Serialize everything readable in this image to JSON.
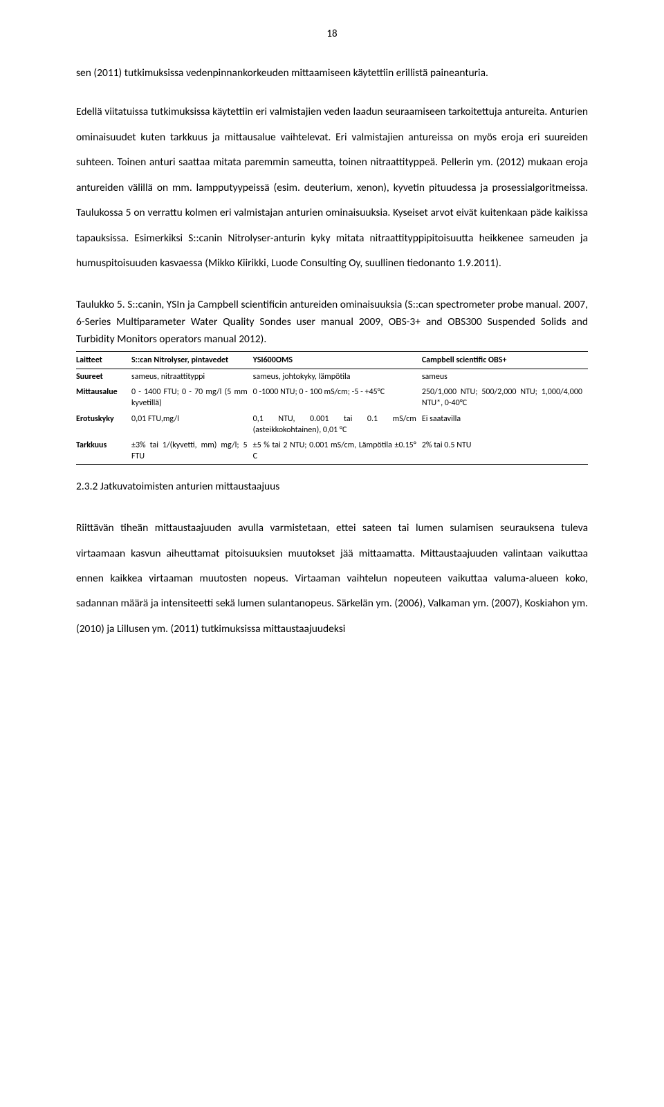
{
  "page_number": "18",
  "paragraphs": {
    "p1": "sen (2011) tutkimuksissa vedenpinnankorkeuden mittaamiseen käytettiin erillistä paineanturia.",
    "p2": "Edellä viitatuissa tutkimuksissa käytettiin eri valmistajien veden laadun seuraamiseen tarkoitettuja antureita. Anturien ominaisuudet kuten tarkkuus ja mittausalue vaihtelevat. Eri valmistajien antureissa on myös eroja eri suureiden suhteen. Toinen anturi saattaa mitata paremmin sameutta, toinen nitraattityppeä. Pellerin ym. (2012) mukaan eroja antureiden välillä on mm. lampputyypeissä (esim. deuterium, xenon), kyvetin pituudessa ja prosessialgoritmeissa. Taulukossa 5 on verrattu kolmen eri valmistajan anturien ominaisuuksia. Kyseiset arvot eivät kuitenkaan päde kaikissa tapauksissa. Esimerkiksi S::canin Nitrolyser-anturin kyky mitata nitraattityppipitoisuutta heikkenee sameuden ja humuspitoisuuden kasvaessa (Mikko Kiirikki, Luode Consulting Oy, suullinen tiedonanto 1.9.2011).",
    "p3": "Riittävän tiheän mittaustaajuuden avulla varmistetaan, ettei sateen tai lumen sulamisen seurauksena tuleva virtaamaan kasvun aiheuttamat pitoisuuksien muutokset jää mittaamatta. Mittaustaajuuden valintaan vaikuttaa ennen kaikkea virtaaman muutosten nopeus. Virtaaman vaihtelun nopeuteen vaikuttaa valuma-alueen koko, sadannan määrä ja intensiteetti sekä lumen sulantanopeus. Särkelän ym. (2006), Valkaman ym. (2007), Koskiahon ym. (2010) ja Lillusen ym. (2011) tutkimuksissa mittaustaajuudeksi"
  },
  "section_heading": "2.3.2 Jatkuvatoimisten anturien mittaustaajuus",
  "table": {
    "caption": "Taulukko 5. S::canin, YSIn ja Campbell scientificin antureiden ominaisuuksia (S::can spectrometer probe manual. 2007, 6-Series Multiparameter Water Quality Sondes user manual 2009, OBS-3+ and OBS300 Suspended Solids and Turbidity Monitors operators manual 2012).",
    "headers": {
      "h0": "Laitteet",
      "h1": "S::can Nitrolyser, pintavedet",
      "h2": "YSI600OMS",
      "h3": "Campbell scientific OBS+"
    },
    "rows": {
      "suureet": {
        "label": "Suureet",
        "c1": "sameus, nitraattityppi",
        "c2": "sameus, johtokyky, lämpötila",
        "c3": "sameus"
      },
      "mittausalue": {
        "label": "Mittausalue",
        "c1": "0 - 1400 FTU; 0 - 70 mg/l (5 mm kyvetillä)",
        "c2": "0 -1000 NTU; 0 - 100 mS/cm; -5 - +45°C",
        "c3": "250/1,000 NTU; 500/2,000 NTU; 1,000/4,000 NTU*, 0-40°C"
      },
      "erotuskyky": {
        "label": "Erotuskyky",
        "c1": "0,01 FTU,mg/l",
        "c2": "0,1 NTU, 0.001 tai 0.1 mS/cm (asteikkokohtainen), 0,01 °C",
        "c3": "Ei saatavilla"
      },
      "tarkkuus": {
        "label": "Tarkkuus",
        "c1": "±3% tai 1/(kyvetti, mm) mg/l; 5 FTU",
        "c2": "±5 % tai 2 NTU; 0.001 mS/cm, Lämpötila ±0.15° C",
        "c3": "2% tai 0.5 NTU"
      }
    }
  }
}
